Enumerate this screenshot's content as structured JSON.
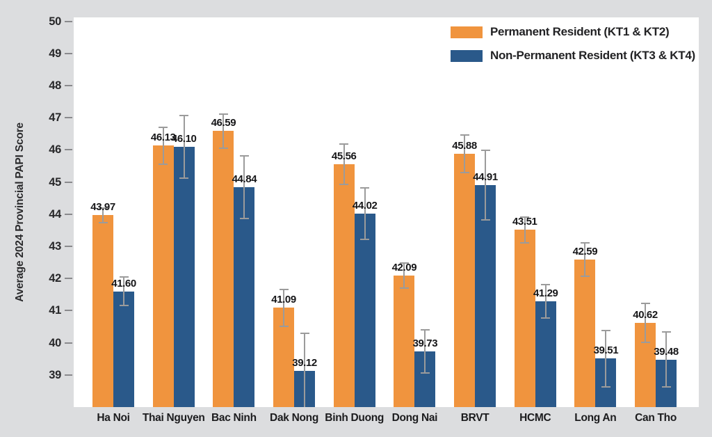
{
  "chart_data": {
    "type": "bar",
    "title": "",
    "ylabel": "Average 2024 Provincial PAPI Score",
    "xlabel": "",
    "categories": [
      "Ha Noi",
      "Thai Nguyen",
      "Bac Ninh",
      "Dak Nong",
      "Binh Duong",
      "Dong Nai",
      "BRVT",
      "HCMC",
      "Long An",
      "Can Tho"
    ],
    "series": [
      {
        "name": "Permanent Resident (KT1 & KT2)",
        "color": "#F0943E",
        "values": [
          43.97,
          46.13,
          46.59,
          41.09,
          45.56,
          42.09,
          45.88,
          43.51,
          42.59,
          40.62
        ],
        "errors": [
          0.25,
          0.6,
          0.55,
          0.6,
          0.65,
          0.42,
          0.6,
          0.42,
          0.55,
          0.62
        ]
      },
      {
        "name": "Non-Permanent Resident (KT3 & KT4)",
        "color": "#2A598A",
        "values": [
          41.6,
          46.1,
          44.84,
          39.12,
          44.02,
          39.73,
          44.91,
          41.29,
          39.51,
          39.48
        ],
        "errors": [
          0.47,
          1.0,
          1.0,
          1.2,
          0.82,
          0.7,
          1.1,
          0.55,
          0.9,
          0.88
        ]
      }
    ],
    "y_ticks": [
      39,
      40,
      41,
      42,
      43,
      44,
      45,
      46,
      47,
      48,
      49,
      50
    ],
    "ylim": [
      38.0,
      50.12
    ],
    "grid": false,
    "legend_position": "top-right-inside",
    "error_bar_color": "#9B9B9B",
    "value_labels": "each bar labeled with value to 2 decimals above bar top"
  },
  "colors": {
    "canvas_background": "#DCDDDF",
    "plot_background": "#FFFFFF",
    "text": "#1C1C1E",
    "tick": "#8A8A8D"
  }
}
